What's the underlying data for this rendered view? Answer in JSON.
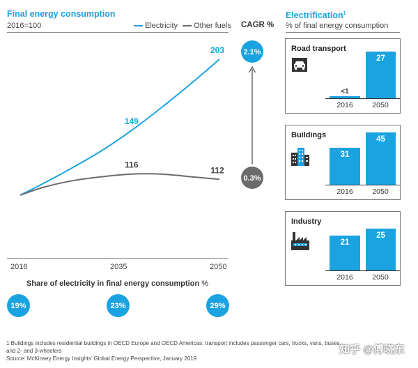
{
  "left": {
    "title": "Final energy consumption",
    "subtitle": "2016=100",
    "cagr_label": "CAGR %",
    "share_title": "Share of electricity in final energy consumption",
    "share_unit": "%"
  },
  "right": {
    "title": "Electrification",
    "title_sup": "1",
    "subtitle": "% of final energy consumption"
  },
  "chart_data": [
    {
      "type": "line",
      "title": "Final energy consumption",
      "subtitle": "2016=100",
      "x": [
        2016,
        2035,
        2050
      ],
      "xlim": [
        2016,
        2050
      ],
      "ylim": [
        90,
        215
      ],
      "series": [
        {
          "name": "Electricity",
          "color": "#1aa3e0",
          "points": [
            [
              2016,
              100
            ],
            [
              2020,
              109
            ],
            [
              2025,
              121
            ],
            [
              2030,
              134
            ],
            [
              2035,
              149
            ],
            [
              2040,
              166
            ],
            [
              2045,
              184
            ],
            [
              2050,
              203
            ]
          ],
          "labels": [
            {
              "x": 2035,
              "y": 149,
              "text": "149"
            },
            {
              "x": 2050,
              "y": 203,
              "text": "203"
            }
          ],
          "cagr": "2.1%"
        },
        {
          "name": "Other fuels",
          "color": "#6b6b6b",
          "points": [
            [
              2016,
              100
            ],
            [
              2020,
              106
            ],
            [
              2025,
              111
            ],
            [
              2030,
              114
            ],
            [
              2035,
              116
            ],
            [
              2040,
              116
            ],
            [
              2045,
              114
            ],
            [
              2050,
              112
            ]
          ],
          "labels": [
            {
              "x": 2035,
              "y": 116,
              "text": "116"
            },
            {
              "x": 2050,
              "y": 112,
              "text": "112"
            }
          ],
          "cagr": "0.3%"
        }
      ],
      "share_of_electricity": [
        {
          "year": "2016",
          "value": "19%"
        },
        {
          "year": "2035",
          "value": "23%"
        },
        {
          "year": "2050",
          "value": "29%"
        }
      ],
      "legend": "top-right",
      "grid": false
    },
    {
      "type": "bar",
      "title": "Road transport",
      "categories": [
        "2016",
        "2050"
      ],
      "values": [
        0.5,
        27
      ],
      "value_labels": [
        "<1",
        "27"
      ],
      "ylim": [
        0,
        27
      ]
    },
    {
      "type": "bar",
      "title": "Buildings",
      "categories": [
        "2016",
        "2050"
      ],
      "values": [
        31,
        45
      ],
      "value_labels": [
        "31",
        "45"
      ],
      "ylim": [
        0,
        45
      ]
    },
    {
      "type": "bar",
      "title": "Industry",
      "categories": [
        "2016",
        "2050"
      ],
      "values": [
        21,
        25
      ],
      "value_labels": [
        "21",
        "25"
      ],
      "ylim": [
        0,
        25
      ]
    }
  ],
  "footnote": {
    "line1": "1 Buildings includes residential buildings in OECD Europe and OECD Americas; transport includes passenger cars, trucks, vans, buses,",
    "line2": "and 2- and 3-wheelers",
    "source": "Source: McKinsey Energy Insights’ Global Energy Perspective, January 2019"
  },
  "watermark": "知乎 @傅晓东",
  "icons": [
    "car-icon",
    "building-icon",
    "factory-icon"
  ]
}
